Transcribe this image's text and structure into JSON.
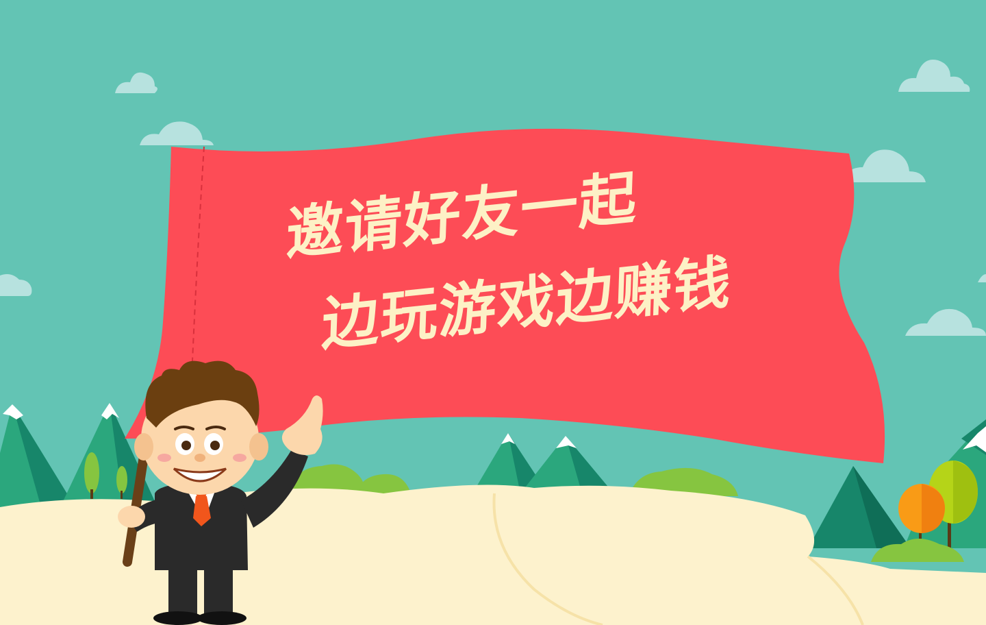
{
  "headline": {
    "line_1": "邀请好友一起",
    "line_2": "边玩游戏边赚钱"
  },
  "colors": {
    "sky": "#63c4b4",
    "cloud": "#b7e2df",
    "flag": "#fd4c56",
    "flag_stitch": "#d8303c",
    "headline_text": "#fdf1c6",
    "ground": "#fdf2cd",
    "mountain_green": "#2ba77d",
    "mountain_dark": "#17866a",
    "bush": "#86c540",
    "tree_orange": "#f99b16",
    "tree_lime": "#b5d418",
    "suit": "#2a2a2a",
    "tie": "#f1561c",
    "hair": "#6b3f10",
    "skin": "#fcd7ac",
    "pole": "#6a4018"
  }
}
